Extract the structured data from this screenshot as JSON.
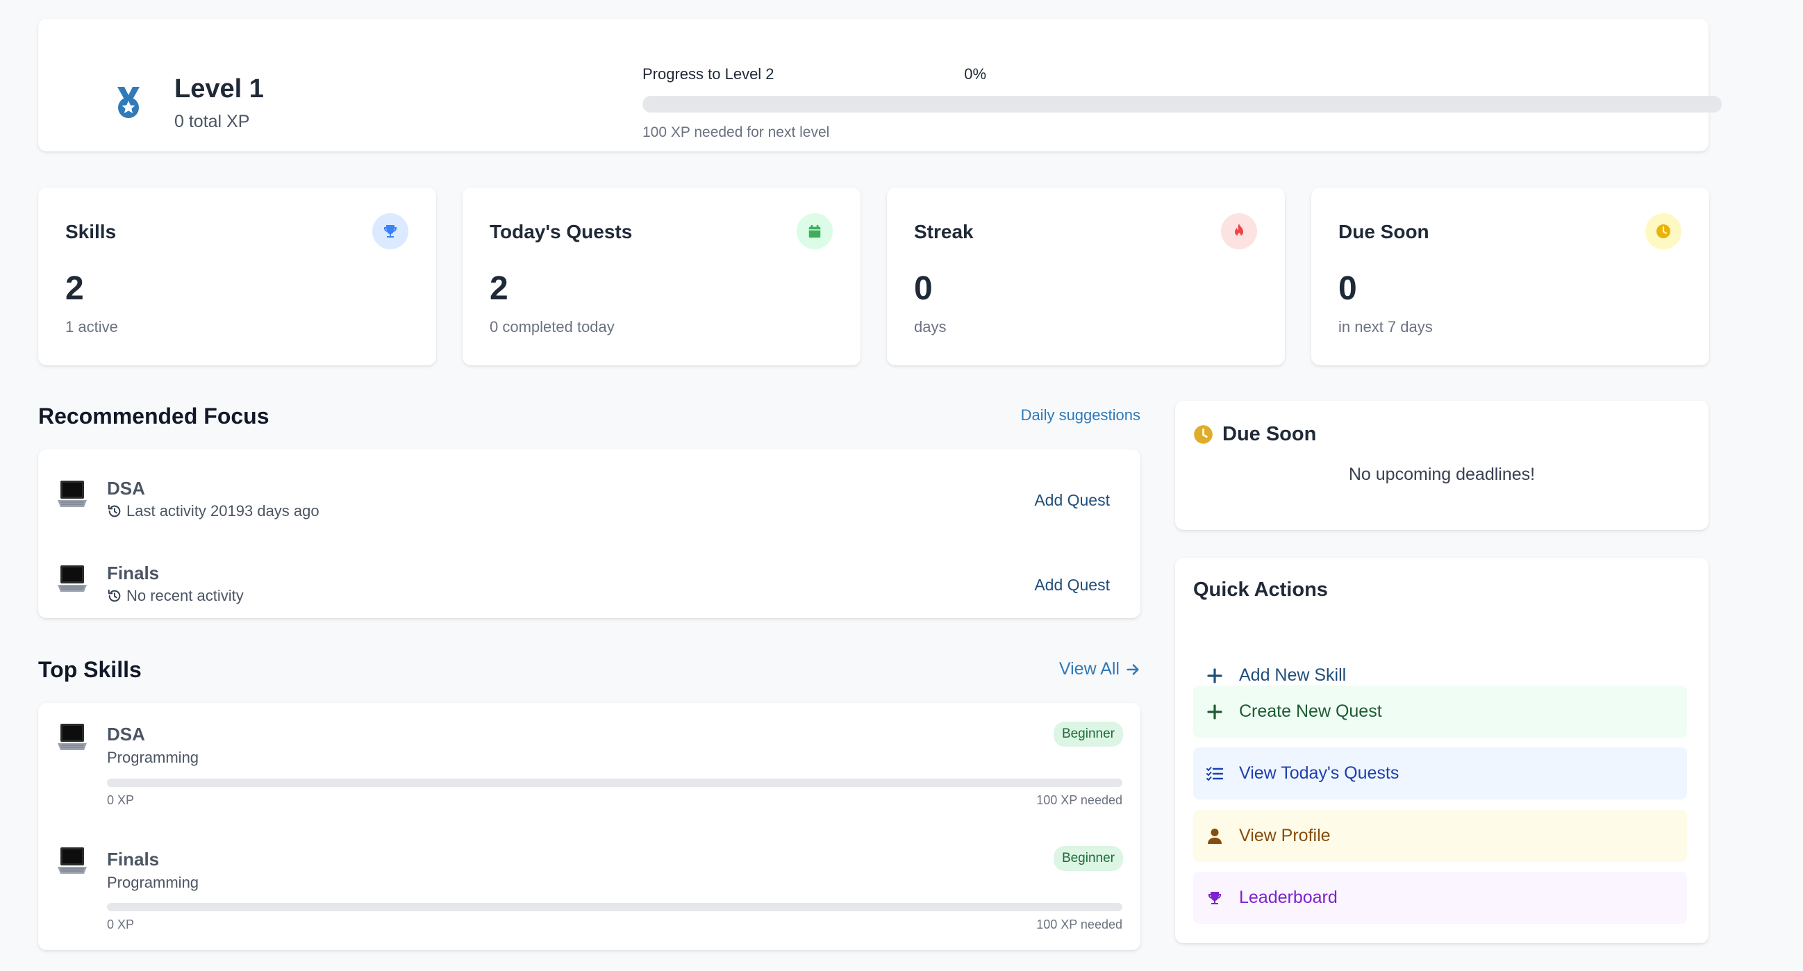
{
  "level": {
    "title": "Level 1",
    "total_xp": "0 total XP",
    "progress_label": "Progress to Level 2",
    "progress_percent": "0%",
    "progress_fraction": 0,
    "progress_hint": "100 XP needed for next level"
  },
  "stats": [
    {
      "title": "Skills",
      "value": "2",
      "sub": "1 active",
      "icon": "trophy-icon",
      "icon_color": "#3b82f6",
      "icon_bg": "#dbeafe"
    },
    {
      "title": "Today's Quests",
      "value": "2",
      "sub": "0 completed today",
      "icon": "calendar-icon",
      "icon_color": "#3fae5a",
      "icon_bg": "#dcfce7"
    },
    {
      "title": "Streak",
      "value": "0",
      "sub": "days",
      "icon": "fire-icon",
      "icon_color": "#ef4444",
      "icon_bg": "#fde2e2"
    },
    {
      "title": "Due Soon",
      "value": "0",
      "sub": "in next 7 days",
      "icon": "clock-icon",
      "icon_color": "#eab308",
      "icon_bg": "#fef9c3"
    }
  ],
  "focus": {
    "title": "Recommended Focus",
    "link": "Daily suggestions",
    "items": [
      {
        "name": "DSA",
        "sub": "Last activity 20193 days ago",
        "action": "Add Quest"
      },
      {
        "name": "Finals",
        "sub": "No recent activity",
        "action": "Add Quest"
      }
    ]
  },
  "top_skills": {
    "title": "Top Skills",
    "link": "View All",
    "items": [
      {
        "name": "DSA",
        "category": "Programming",
        "badge": "Beginner",
        "xp": "0 XP",
        "needed": "100 XP needed",
        "progress_fraction": 0
      },
      {
        "name": "Finals",
        "category": "Programming",
        "badge": "Beginner",
        "xp": "0 XP",
        "needed": "100 XP needed",
        "progress_fraction": 0
      }
    ]
  },
  "due_soon": {
    "title": "Due Soon",
    "empty": "No upcoming deadlines!"
  },
  "quick_actions": {
    "title": "Quick Actions",
    "items": [
      {
        "label": "Add New Skill",
        "icon": "plus-icon",
        "color": "#1f4e7a",
        "bg": "#ffffff"
      },
      {
        "label": "Create New Quest",
        "icon": "plus-icon",
        "color": "#1d5b32",
        "bg": "#f0fdf4"
      },
      {
        "label": "View Today's Quests",
        "icon": "checklist-icon",
        "color": "#1e40af",
        "bg": "#eff6ff"
      },
      {
        "label": "View Profile",
        "icon": "user-icon",
        "color": "#854d0e",
        "bg": "#fefce8"
      },
      {
        "label": "Leaderboard",
        "icon": "trophy-icon",
        "color": "#7e22ce",
        "bg": "#faf5ff"
      }
    ]
  }
}
